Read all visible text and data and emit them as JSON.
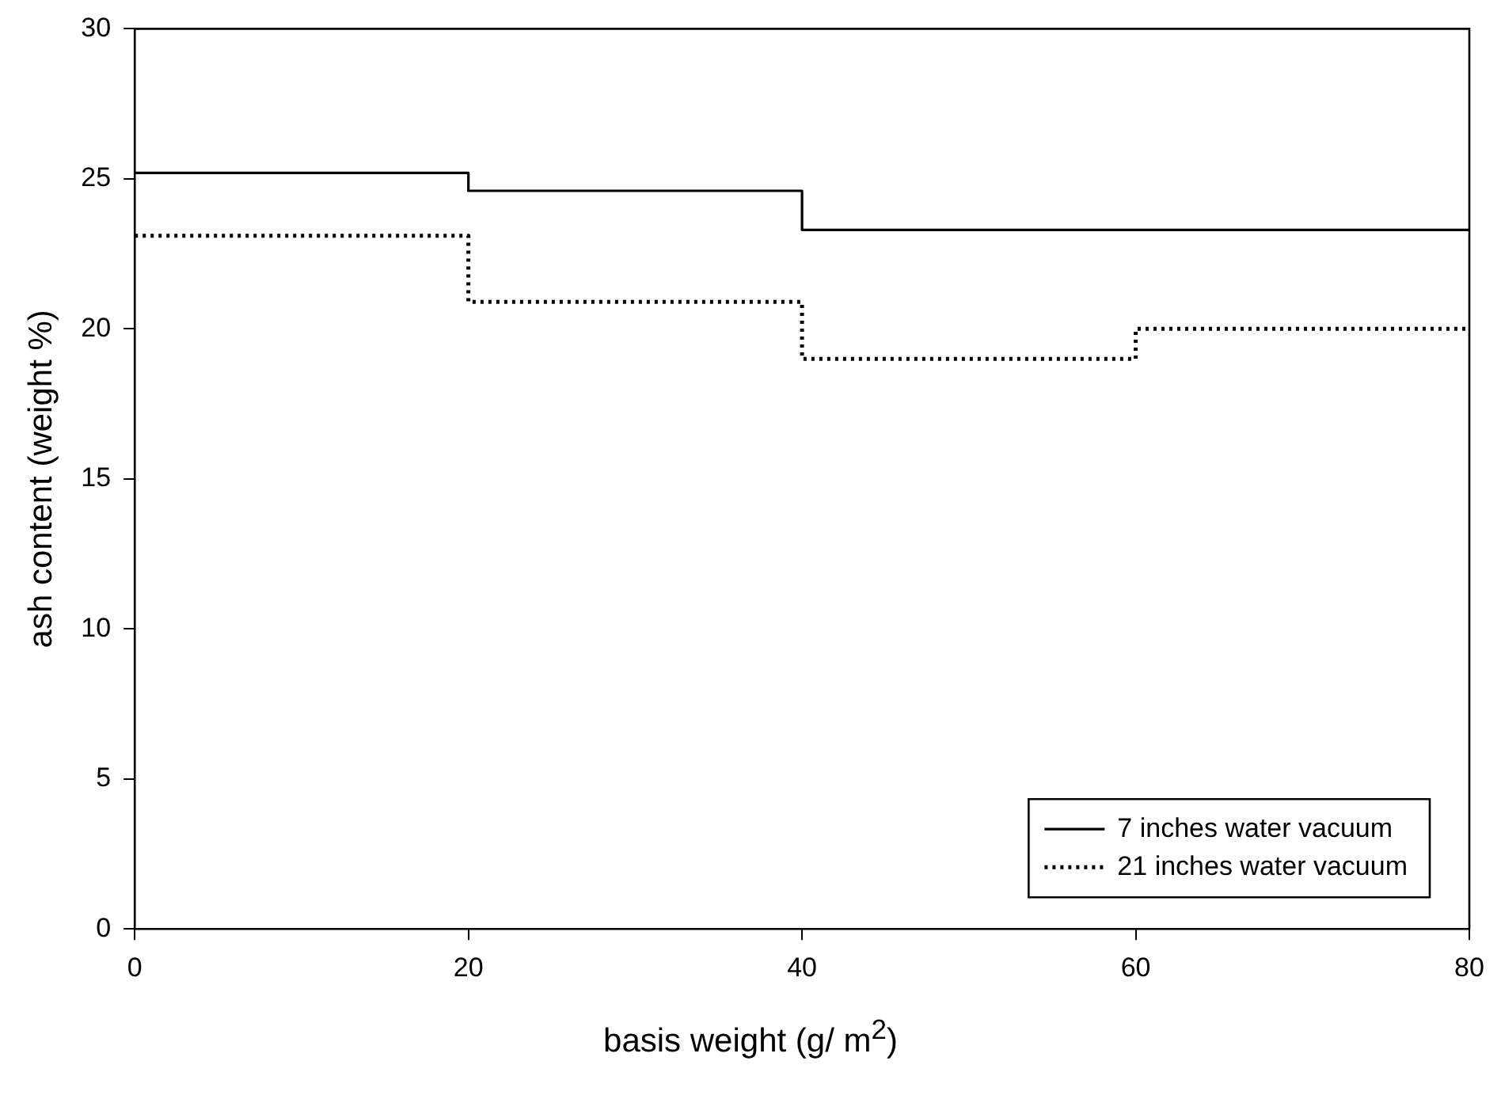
{
  "chart_data": {
    "type": "step",
    "xlabel": "basis weight (g/ m$^{2}$)",
    "ylabel": "ash content (weight %)",
    "x": [
      0,
      20,
      40,
      60,
      80
    ],
    "series": [
      {
        "name": "7 inches water vacuum",
        "color": "#000000",
        "line_style": "solid",
        "values": [
          25.2,
          24.6,
          23.3,
          23.3,
          23.3
        ]
      },
      {
        "name": "21 inches water vacuum",
        "color": "#000000",
        "line_style": "dotted",
        "values": [
          23.1,
          20.9,
          19.0,
          20.0,
          20.0
        ]
      }
    ],
    "xlim": [
      0,
      80
    ],
    "xticks": [
      0,
      20,
      40,
      60,
      80
    ],
    "ylim": [
      0,
      30
    ],
    "yticks": [
      0,
      5,
      10,
      15,
      20,
      25,
      30
    ],
    "grid": false,
    "legend": "bottom right",
    "marker": "none"
  }
}
